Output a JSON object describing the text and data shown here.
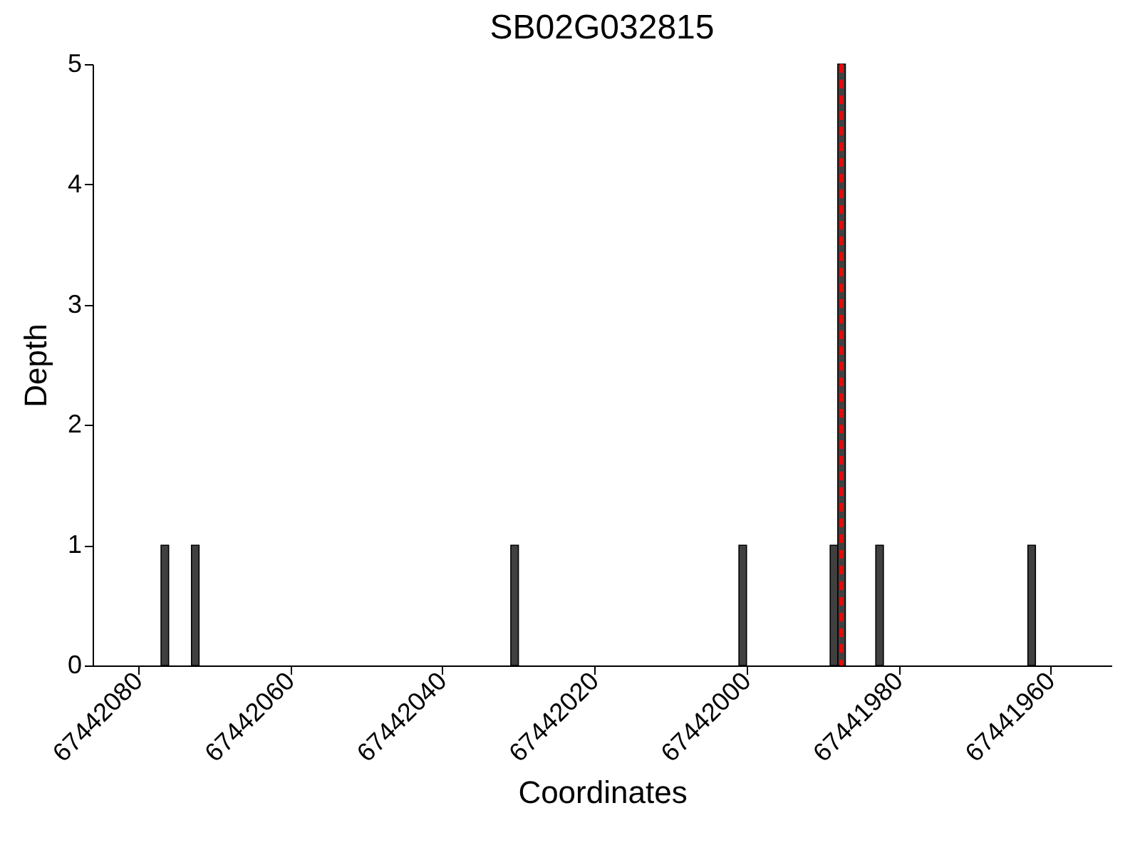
{
  "chart_data": {
    "type": "bar",
    "title": "SB02G032815",
    "xlabel": "Coordinates",
    "ylabel": "Depth",
    "x": [
      67442076.5,
      67442072.5,
      67442030.5,
      67442000.5,
      67441988.5,
      67441987.5,
      67441982.5,
      67441962.5
    ],
    "values": [
      1,
      1,
      1,
      1,
      1,
      5,
      1,
      1
    ],
    "color": "#404040",
    "xlim": [
      67442086,
      67441952
    ],
    "xticks": [
      67442080,
      67442060,
      67442040,
      67442020,
      67442000,
      67441980,
      67441960
    ],
    "ylim": [
      0,
      5
    ],
    "yticks": [
      0,
      1,
      2,
      3,
      4,
      5
    ],
    "ref_lines": [
      {
        "axis": "x",
        "value": 67441987.5,
        "color": "#ff0000",
        "line_style": "dashed"
      }
    ],
    "grid": false
  }
}
